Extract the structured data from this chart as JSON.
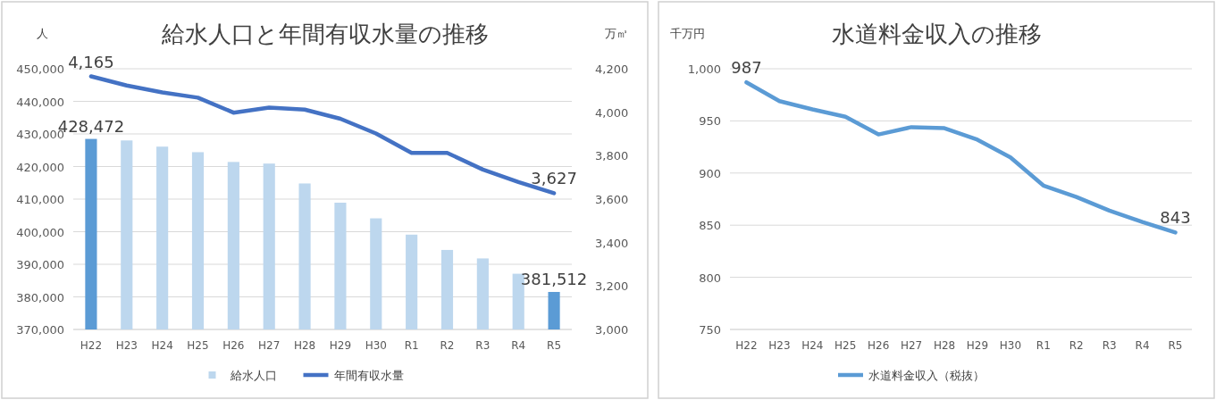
{
  "chart_data": [
    {
      "type": "bar",
      "title": "給水人口と年間有収水量の推移",
      "ylabel": "人",
      "y2label": "万㎥",
      "categories": [
        "H22",
        "H23",
        "H24",
        "H25",
        "H26",
        "H27",
        "H28",
        "H29",
        "H30",
        "R1",
        "R2",
        "R3",
        "R4",
        "R5"
      ],
      "series": [
        {
          "name": "給水人口",
          "type": "bar",
          "color": "#bdd7ee",
          "colors": [
            "#5b9bd5",
            "#bdd7ee",
            "#bdd7ee",
            "#bdd7ee",
            "#bdd7ee",
            "#bdd7ee",
            "#bdd7ee",
            "#bdd7ee",
            "#bdd7ee",
            "#bdd7ee",
            "#bdd7ee",
            "#bdd7ee",
            "#bdd7ee",
            "#5b9bd5"
          ],
          "values": [
            428472,
            428000,
            426100,
            424400,
            421400,
            420900,
            414800,
            408900,
            404100,
            399100,
            394400,
            391800,
            387100,
            381512
          ],
          "value_labels": [
            "428,472",
            null,
            null,
            null,
            null,
            null,
            null,
            null,
            null,
            null,
            null,
            null,
            null,
            "381,512"
          ]
        },
        {
          "name": "年間有収水量",
          "type": "line",
          "axis": "y2",
          "color": "#4472c4",
          "values": [
            4165,
            4123,
            4091,
            4067,
            3998,
            4021,
            4012,
            3970,
            3902,
            3813,
            3813,
            3736,
            3679,
            3627
          ],
          "value_labels": [
            "4,165",
            null,
            null,
            null,
            null,
            null,
            null,
            null,
            null,
            null,
            null,
            null,
            null,
            "3,627"
          ]
        }
      ],
      "ylim": [
        370000,
        450000
      ],
      "yticks": [
        {
          "value": 370000,
          "label": "370,000"
        },
        {
          "value": 380000,
          "label": "380,000"
        },
        {
          "value": 390000,
          "label": "390,000"
        },
        {
          "value": 400000,
          "label": "400,000"
        },
        {
          "value": 410000,
          "label": "410,000"
        },
        {
          "value": 420000,
          "label": "420,000"
        },
        {
          "value": 430000,
          "label": "430,000"
        },
        {
          "value": 440000,
          "label": "440,000"
        },
        {
          "value": 450000,
          "label": "450,000"
        }
      ],
      "y2lim": [
        3000,
        4200
      ],
      "y2ticks": [
        {
          "value": 3000,
          "label": "3,000"
        },
        {
          "value": 3200,
          "label": "3,200"
        },
        {
          "value": 3400,
          "label": "3,400"
        },
        {
          "value": 3600,
          "label": "3,600"
        },
        {
          "value": 3800,
          "label": "3,800"
        },
        {
          "value": 4000,
          "label": "4,000"
        },
        {
          "value": 4200,
          "label": "4,200"
        }
      ],
      "grid": "y",
      "legend": "bottom"
    },
    {
      "type": "line",
      "title": "水道料金収入の推移",
      "ylabel": "千万円",
      "categories": [
        "H22",
        "H23",
        "H24",
        "H25",
        "H26",
        "H27",
        "H28",
        "H29",
        "H30",
        "R1",
        "R2",
        "R3",
        "R4",
        "R5"
      ],
      "series": [
        {
          "name": "水道料金収入（税抜）",
          "color": "#5b9bd5",
          "values": [
            987,
            969,
            961,
            954,
            937,
            944,
            943,
            932,
            915,
            888,
            877,
            864,
            853,
            843
          ],
          "value_labels": [
            "987",
            null,
            null,
            null,
            null,
            null,
            null,
            null,
            null,
            null,
            null,
            null,
            null,
            "843"
          ]
        }
      ],
      "ylim": [
        750,
        1000
      ],
      "yticks": [
        750,
        800,
        850,
        900,
        950,
        {
          "value": 1000,
          "label": "1,000"
        }
      ],
      "grid": "y",
      "legend": "bottom"
    }
  ]
}
